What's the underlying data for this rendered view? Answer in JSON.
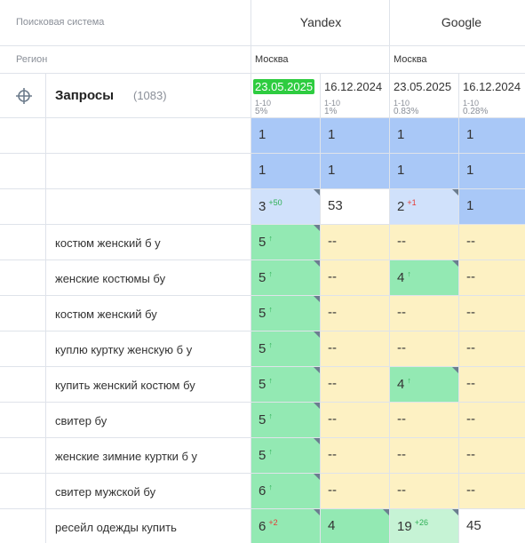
{
  "header": {
    "search_engine_label": "Поисковая система",
    "region_label": "Регион",
    "queries_label": "Запросы",
    "queries_count": "(1083)",
    "engines": [
      {
        "name": "Yandex",
        "region": "Москва",
        "dates": [
          {
            "date": "23.05.2025",
            "highlight": true,
            "range": "1-10",
            "share": "5%"
          },
          {
            "date": "16.12.2024",
            "range": "1-10",
            "share": "1%"
          }
        ]
      },
      {
        "name": "Google",
        "region": "Москва",
        "dates": [
          {
            "date": "23.05.2025",
            "range": "1-10",
            "share": "0.83%"
          },
          {
            "date": "16.12.2024",
            "range": "1-10",
            "share": "0.28%"
          }
        ]
      }
    ]
  },
  "rows": [
    {
      "cells": [
        {
          "text": "1",
          "bg": "blue"
        },
        {
          "text": "1",
          "bg": "blue"
        },
        {
          "text": "1",
          "bg": "blue"
        },
        {
          "text": "1",
          "bg": "blue"
        }
      ]
    },
    {
      "cells": [
        {
          "text": "1",
          "bg": "blue"
        },
        {
          "text": "1",
          "bg": "blue"
        },
        {
          "text": "1",
          "bg": "blue"
        },
        {
          "text": "1",
          "bg": "blue"
        }
      ]
    },
    {
      "cells": [
        {
          "text": "3",
          "change": "+50",
          "change_color": "green",
          "bg": "lightblue"
        },
        {
          "text": "53",
          "bg": "white"
        },
        {
          "text": "2",
          "change": "+1",
          "change_color": "red",
          "bg": "lightblue"
        },
        {
          "text": "1",
          "bg": "blue"
        }
      ]
    },
    {
      "query": "костюм женский б у",
      "cells": [
        {
          "text": "5",
          "change": "↑",
          "change_color": "green",
          "bg": "green"
        },
        {
          "text": "--",
          "bg": "yellow"
        },
        {
          "text": "--",
          "bg": "yellow"
        },
        {
          "text": "--",
          "bg": "yellow"
        }
      ]
    },
    {
      "query": "женские костюмы бу",
      "cells": [
        {
          "text": "5",
          "change": "↑",
          "change_color": "green",
          "bg": "green"
        },
        {
          "text": "--",
          "bg": "yellow"
        },
        {
          "text": "4",
          "change": "↑",
          "change_color": "green",
          "bg": "green"
        },
        {
          "text": "--",
          "bg": "yellow"
        }
      ]
    },
    {
      "query": "костюм женский бу",
      "cells": [
        {
          "text": "5",
          "change": "↑",
          "change_color": "green",
          "bg": "green"
        },
        {
          "text": "--",
          "bg": "yellow"
        },
        {
          "text": "--",
          "bg": "yellow"
        },
        {
          "text": "--",
          "bg": "yellow"
        }
      ]
    },
    {
      "query": "куплю куртку женскую б у",
      "cells": [
        {
          "text": "5",
          "change": "↑",
          "change_color": "green",
          "bg": "green"
        },
        {
          "text": "--",
          "bg": "yellow"
        },
        {
          "text": "--",
          "bg": "yellow"
        },
        {
          "text": "--",
          "bg": "yellow"
        }
      ]
    },
    {
      "query": "купить женский костюм бу",
      "cells": [
        {
          "text": "5",
          "change": "↑",
          "change_color": "green",
          "bg": "green"
        },
        {
          "text": "--",
          "bg": "yellow"
        },
        {
          "text": "4",
          "change": "↑",
          "change_color": "green",
          "bg": "green"
        },
        {
          "text": "--",
          "bg": "yellow"
        }
      ]
    },
    {
      "query": "свитер бу",
      "cells": [
        {
          "text": "5",
          "change": "↑",
          "change_color": "green",
          "bg": "green"
        },
        {
          "text": "--",
          "bg": "yellow"
        },
        {
          "text": "--",
          "bg": "yellow"
        },
        {
          "text": "--",
          "bg": "yellow"
        }
      ]
    },
    {
      "query": "женские зимние куртки б у",
      "cells": [
        {
          "text": "5",
          "change": "↑",
          "change_color": "green",
          "bg": "green"
        },
        {
          "text": "--",
          "bg": "yellow"
        },
        {
          "text": "--",
          "bg": "yellow"
        },
        {
          "text": "--",
          "bg": "yellow"
        }
      ]
    },
    {
      "query": "свитер мужской бу",
      "cells": [
        {
          "text": "6",
          "change": "↑",
          "change_color": "green",
          "bg": "green"
        },
        {
          "text": "--",
          "bg": "yellow"
        },
        {
          "text": "--",
          "bg": "yellow"
        },
        {
          "text": "--",
          "bg": "yellow"
        }
      ]
    },
    {
      "query": "ресейл одежды купить",
      "cells": [
        {
          "text": "6",
          "change": "+2",
          "change_color": "red",
          "bg": "green"
        },
        {
          "text": "4",
          "bg": "green"
        },
        {
          "text": "19",
          "change": "+26",
          "change_color": "green",
          "bg": "palegreen"
        },
        {
          "text": "45",
          "bg": "white"
        }
      ]
    }
  ]
}
